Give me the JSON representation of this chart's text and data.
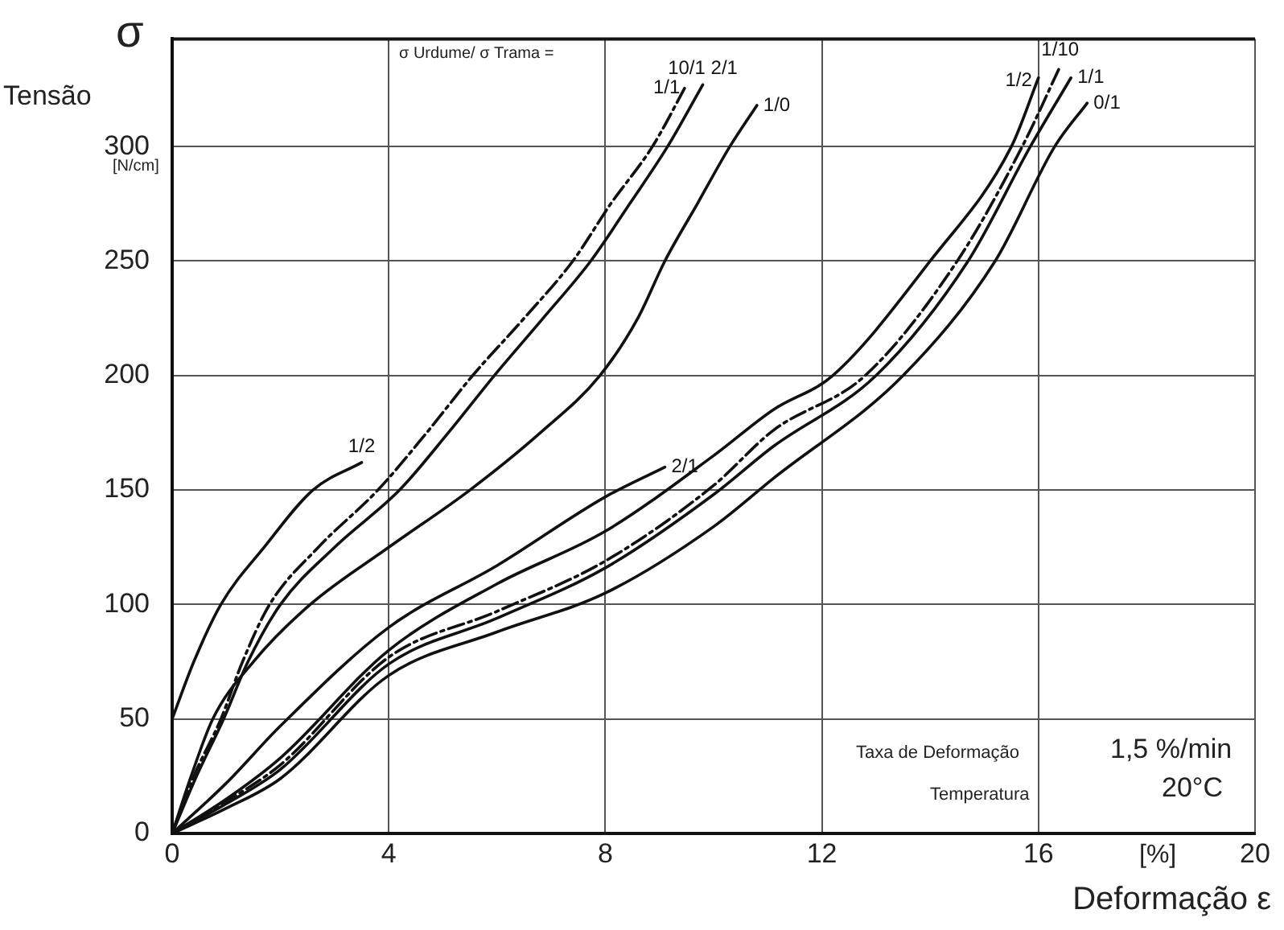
{
  "chart_data": {
    "type": "line",
    "xlabel": "Deformação ε",
    "ylabel": "Tensão",
    "xlim": [
      0,
      20
    ],
    "ylim": [
      0,
      347
    ],
    "xticks": [
      0,
      4,
      8,
      12,
      16,
      20
    ],
    "yticks": [
      0,
      50,
      100,
      150,
      200,
      250,
      300
    ],
    "grid": true,
    "legend": false,
    "marker": "none",
    "annotations": [
      "σ",
      "[N/cm]",
      "[%]",
      "σ Urdume/ σ Trama  =",
      "Taxa de Deformação",
      "1,5 %/min",
      "Temperatura",
      "20°C"
    ],
    "series": [
      {
        "name": "1/2",
        "color": "#111111",
        "line_style": "solid",
        "x": [
          0,
          0.4,
          0.9,
          1.7,
          2.6,
          3.5
        ],
        "values": [
          50,
          75,
          100,
          125,
          150,
          162
        ]
      },
      {
        "name": "1/1",
        "color": "#111111",
        "line_style": "dashed",
        "x": [
          0,
          0.4,
          0.9,
          1.3,
          1.8,
          2.7,
          3.8,
          4.7,
          5.55,
          6.5,
          7.4,
          8.1,
          8.87,
          9.5
        ],
        "values": [
          0,
          25,
          50,
          75,
          100,
          125,
          150,
          175,
          200,
          225,
          250,
          275,
          300,
          327
        ]
      },
      {
        "name": "10/1 2/1",
        "color": "#111111",
        "line_style": "solid",
        "x": [
          0,
          0.45,
          0.95,
          1.4,
          2.0,
          3.0,
          4.2,
          5.1,
          5.95,
          6.85,
          7.73,
          8.45,
          9.15,
          9.8
        ],
        "values": [
          0,
          25,
          50,
          75,
          100,
          125,
          150,
          175,
          200,
          225,
          250,
          275,
          300,
          327
        ]
      },
      {
        "name": "1/0",
        "color": "#111111",
        "line_style": "solid",
        "x": [
          0,
          0.35,
          0.75,
          1.5,
          2.55,
          4.0,
          5.5,
          6.8,
          7.9,
          8.6,
          9.1,
          9.7,
          10.3,
          10.8
        ],
        "values": [
          0,
          25,
          50,
          75,
          100,
          125,
          150,
          175,
          200,
          225,
          250,
          275,
          300,
          318
        ]
      },
      {
        "name": "2/1",
        "color": "#111111",
        "line_style": "solid",
        "x": [
          0,
          1,
          2,
          4,
          6,
          8,
          9.1
        ],
        "values": [
          0,
          22,
          47,
          90,
          117,
          147,
          160
        ]
      },
      {
        "name": "1/2",
        "color": "#111111",
        "line_style": "solid",
        "x": [
          0,
          1,
          2,
          4,
          6,
          8,
          10,
          11.1,
          12.2,
          14.0,
          15.5,
          16.0
        ],
        "values": [
          0,
          15,
          33,
          80,
          109,
          132,
          165,
          185,
          200,
          250,
          300,
          330
        ]
      },
      {
        "name": "1/10",
        "color": "#111111",
        "line_style": "dashed",
        "x": [
          0,
          1,
          2,
          4,
          6,
          8,
          10,
          11.1,
          12.8,
          14.5,
          15.7,
          16.4
        ],
        "values": [
          0,
          14,
          30,
          77,
          97,
          119,
          152,
          176,
          200,
          250,
          300,
          335
        ]
      },
      {
        "name": "1/1",
        "color": "#111111",
        "line_style": "solid",
        "x": [
          0,
          1,
          2,
          4,
          6,
          8,
          10,
          11.1,
          13.0,
          14.7,
          15.85,
          16.6
        ],
        "values": [
          0,
          13,
          28,
          74,
          94,
          116,
          148,
          169,
          200,
          250,
          300,
          330
        ]
      },
      {
        "name": "0/1",
        "color": "#111111",
        "line_style": "solid",
        "x": [
          0,
          1,
          2,
          4,
          6,
          8,
          10,
          11.1,
          13.5,
          15.2,
          16.3,
          16.9
        ],
        "values": [
          0,
          11,
          24,
          69,
          88,
          105,
          134,
          155,
          200,
          250,
          300,
          319
        ]
      }
    ]
  }
}
